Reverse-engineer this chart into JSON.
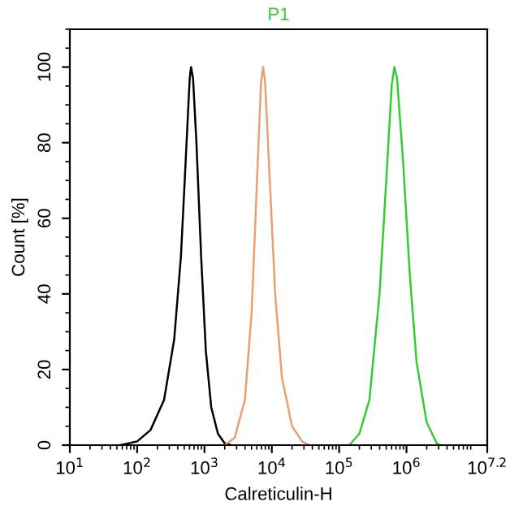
{
  "chart_data": {
    "type": "line",
    "title": "P1",
    "xlabel": "Calreticulin-H",
    "ylabel": "Count [%]",
    "log": "x",
    "grid": false,
    "xlim": [
      10,
      15848932
    ],
    "ylim": [
      0,
      110
    ],
    "xticks": [
      {
        "value": 10,
        "label": "10$^{1}$"
      },
      {
        "value": 100,
        "label": "10$^{2}$"
      },
      {
        "value": 1000,
        "label": "10$^{3}$"
      },
      {
        "value": 10000,
        "label": "10$^{4}$"
      },
      {
        "value": 100000,
        "label": "10$^{5}$"
      },
      {
        "value": 1000000,
        "label": "10$^{6}$"
      },
      {
        "value": 15848932,
        "label": "10$^{7.2}$"
      }
    ],
    "yticks": [
      0,
      20,
      40,
      60,
      80,
      100
    ],
    "series": [
      {
        "color": "#000000",
        "x": [
          56,
          100,
          158,
          251,
          355,
          447,
          525,
          603,
          631,
          676,
          759,
          891,
          1047,
          1259,
          1585,
          1995,
          2512
        ],
        "values": [
          0,
          1,
          4,
          12,
          28,
          50,
          75,
          97,
          100,
          97,
          80,
          50,
          25,
          10,
          3,
          0.5,
          0
        ]
      },
      {
        "color": "#e8a070",
        "x": [
          1995,
          2818,
          3981,
          5012,
          6026,
          6918,
          7413,
          7943,
          9333,
          11220,
          14125,
          19953,
          28184,
          35481
        ],
        "values": [
          0,
          2,
          12,
          35,
          70,
          96,
          100,
          96,
          70,
          40,
          18,
          5,
          1,
          0
        ]
      },
      {
        "color": "#33cc33",
        "x": [
          141254,
          199526,
          281838,
          398107,
          501187,
          602560,
          660693,
          724436,
          891251,
          1122018,
          1412538,
          1995262,
          2818383,
          3162278
        ],
        "values": [
          0,
          3,
          12,
          40,
          70,
          95,
          100,
          97,
          75,
          45,
          22,
          6,
          0.5,
          0
        ]
      }
    ]
  }
}
